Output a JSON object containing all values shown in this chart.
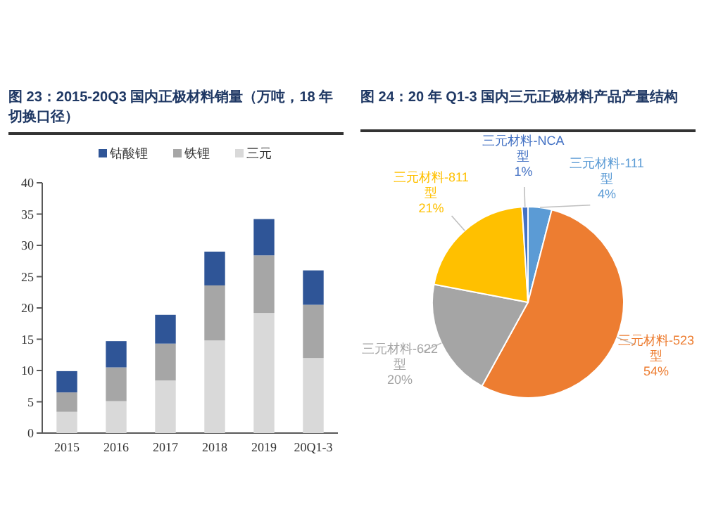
{
  "chart_data": [
    {
      "type": "bar",
      "title": "图 23：2015-20Q3 国内正极材料销量（万吨，18 年切换口径）",
      "stacked": true,
      "legend": "top",
      "grid": false,
      "categories": [
        "2015",
        "2016",
        "2017",
        "2018",
        "2019",
        "20Q1-3"
      ],
      "series": [
        {
          "name": "钴酸锂",
          "color": "#2f5597",
          "values": [
            3.4,
            4.2,
            4.6,
            5.4,
            5.8,
            5.5
          ]
        },
        {
          "name": "铁锂",
          "color": "#a6a6a6",
          "values": [
            3.1,
            5.4,
            5.9,
            8.8,
            9.2,
            8.5
          ]
        },
        {
          "name": "三元",
          "color": "#d9d9d9",
          "values": [
            3.4,
            5.1,
            8.4,
            14.8,
            19.2,
            12.0
          ]
        }
      ],
      "ylim": [
        0,
        40
      ],
      "yticks": [
        0,
        5,
        10,
        15,
        20,
        25,
        30,
        35,
        40
      ]
    },
    {
      "type": "pie",
      "title": "图 24：20 年 Q1-3 国内三元正极材料产品产量结构",
      "categories": [
        "三元材料-111型",
        "三元材料-523型",
        "三元材料-622型",
        "三元材料-811型",
        "三元材料-NCA型"
      ],
      "values": [
        4,
        54,
        20,
        21,
        1
      ],
      "value_labels": [
        "4%",
        "54%",
        "20%",
        "21%",
        "1%"
      ],
      "colors": [
        "#5b9bd5",
        "#ed7d31",
        "#a5a5a5",
        "#ffc000",
        "#4472c4"
      ]
    }
  ]
}
